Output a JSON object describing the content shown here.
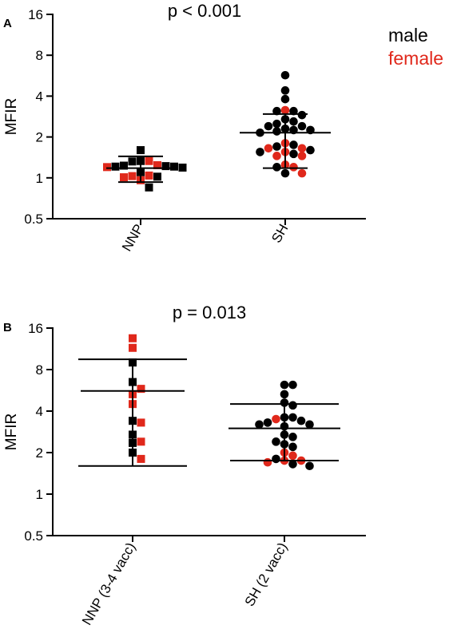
{
  "legend": {
    "male_label": "male",
    "female_label": "female",
    "male_color": "#000000",
    "female_color": "#e0281b"
  },
  "chart_data": [
    {
      "panel_label": "A",
      "type": "scatter",
      "title": "p < 0.001",
      "ylabel": "MFIR",
      "yscale": "log2",
      "ylim": [
        0.5,
        16
      ],
      "yticks": [
        {
          "value": 0.5,
          "label": "0.5"
        },
        {
          "value": 1,
          "label": "1"
        },
        {
          "value": 2,
          "label": "2"
        },
        {
          "value": 4,
          "label": "4"
        },
        {
          "value": 8,
          "label": "8"
        },
        {
          "value": 16,
          "label": "16"
        }
      ],
      "categories": [
        "NNP",
        "SH"
      ],
      "groups": [
        {
          "label": "NNP",
          "marker": "square",
          "mean": 1.18,
          "error": [
            0.93,
            1.44
          ],
          "points": [
            {
              "y": 1.6,
              "sex": "male"
            },
            {
              "y": 1.33,
              "sex": "male"
            },
            {
              "y": 1.33,
              "sex": "female"
            },
            {
              "y": 1.32,
              "sex": "male"
            },
            {
              "y": 1.24,
              "sex": "female"
            },
            {
              "y": 1.23,
              "sex": "male"
            },
            {
              "y": 1.22,
              "sex": "male"
            },
            {
              "y": 1.21,
              "sex": "male"
            },
            {
              "y": 1.21,
              "sex": "male"
            },
            {
              "y": 1.2,
              "sex": "female"
            },
            {
              "y": 1.19,
              "sex": "male"
            },
            {
              "y": 1.1,
              "sex": "male"
            },
            {
              "y": 1.04,
              "sex": "female"
            },
            {
              "y": 1.03,
              "sex": "female"
            },
            {
              "y": 1.02,
              "sex": "male"
            },
            {
              "y": 1.01,
              "sex": "female"
            },
            {
              "y": 0.96,
              "sex": "female"
            },
            {
              "y": 0.85,
              "sex": "male"
            }
          ]
        },
        {
          "label": "SH",
          "marker": "circle",
          "mean": 2.15,
          "error": [
            1.18,
            2.95
          ],
          "points": [
            {
              "y": 5.7,
              "sex": "male"
            },
            {
              "y": 4.4,
              "sex": "male"
            },
            {
              "y": 3.8,
              "sex": "male"
            },
            {
              "y": 3.15,
              "sex": "female"
            },
            {
              "y": 3.1,
              "sex": "male"
            },
            {
              "y": 3.1,
              "sex": "male"
            },
            {
              "y": 2.9,
              "sex": "male"
            },
            {
              "y": 2.7,
              "sex": "male"
            },
            {
              "y": 2.6,
              "sex": "male"
            },
            {
              "y": 2.5,
              "sex": "male"
            },
            {
              "y": 2.4,
              "sex": "male"
            },
            {
              "y": 2.4,
              "sex": "male"
            },
            {
              "y": 2.3,
              "sex": "male"
            },
            {
              "y": 2.25,
              "sex": "male"
            },
            {
              "y": 2.25,
              "sex": "male"
            },
            {
              "y": 2.2,
              "sex": "male"
            },
            {
              "y": 2.15,
              "sex": "male"
            },
            {
              "y": 1.8,
              "sex": "female"
            },
            {
              "y": 1.75,
              "sex": "male"
            },
            {
              "y": 1.7,
              "sex": "male"
            },
            {
              "y": 1.65,
              "sex": "female"
            },
            {
              "y": 1.65,
              "sex": "female"
            },
            {
              "y": 1.6,
              "sex": "male"
            },
            {
              "y": 1.55,
              "sex": "female"
            },
            {
              "y": 1.55,
              "sex": "male"
            },
            {
              "y": 1.5,
              "sex": "male"
            },
            {
              "y": 1.45,
              "sex": "female"
            },
            {
              "y": 1.45,
              "sex": "female"
            },
            {
              "y": 1.25,
              "sex": "female"
            },
            {
              "y": 1.2,
              "sex": "female"
            },
            {
              "y": 1.2,
              "sex": "male"
            },
            {
              "y": 1.08,
              "sex": "male"
            },
            {
              "y": 1.08,
              "sex": "female"
            }
          ]
        }
      ]
    },
    {
      "panel_label": "B",
      "type": "scatter",
      "title": "p = 0.013",
      "ylabel": "MFIR",
      "yscale": "log2",
      "ylim": [
        0.5,
        16
      ],
      "yticks": [
        {
          "value": 0.5,
          "label": "0.5"
        },
        {
          "value": 1,
          "label": "1"
        },
        {
          "value": 2,
          "label": "2"
        },
        {
          "value": 4,
          "label": "4"
        },
        {
          "value": 8,
          "label": "8"
        },
        {
          "value": 16,
          "label": "16"
        }
      ],
      "categories": [
        "NNP (3-4 vacc)",
        "SH (2 vacc)"
      ],
      "groups": [
        {
          "label": "NNP (3-4 vacc)",
          "marker": "square",
          "mean": 5.6,
          "error": [
            1.6,
            9.5
          ],
          "points": [
            {
              "y": 13.5,
              "sex": "female"
            },
            {
              "y": 11.5,
              "sex": "female"
            },
            {
              "y": 9.0,
              "sex": "male"
            },
            {
              "y": 6.5,
              "sex": "male"
            },
            {
              "y": 5.8,
              "sex": "female"
            },
            {
              "y": 5.3,
              "sex": "female"
            },
            {
              "y": 4.5,
              "sex": "female"
            },
            {
              "y": 3.4,
              "sex": "male"
            },
            {
              "y": 3.3,
              "sex": "female"
            },
            {
              "y": 2.7,
              "sex": "male"
            },
            {
              "y": 2.4,
              "sex": "female"
            },
            {
              "y": 2.35,
              "sex": "male"
            },
            {
              "y": 2.0,
              "sex": "male"
            },
            {
              "y": 1.8,
              "sex": "female"
            }
          ]
        },
        {
          "label": "SH (2 vacc)",
          "marker": "circle",
          "mean": 3.0,
          "error": [
            1.75,
            4.5
          ],
          "points": [
            {
              "y": 6.2,
              "sex": "male"
            },
            {
              "y": 6.2,
              "sex": "male"
            },
            {
              "y": 5.3,
              "sex": "male"
            },
            {
              "y": 4.6,
              "sex": "male"
            },
            {
              "y": 4.4,
              "sex": "male"
            },
            {
              "y": 3.6,
              "sex": "male"
            },
            {
              "y": 3.6,
              "sex": "male"
            },
            {
              "y": 3.5,
              "sex": "female"
            },
            {
              "y": 3.4,
              "sex": "male"
            },
            {
              "y": 3.3,
              "sex": "male"
            },
            {
              "y": 3.2,
              "sex": "male"
            },
            {
              "y": 3.2,
              "sex": "male"
            },
            {
              "y": 3.1,
              "sex": "male"
            },
            {
              "y": 2.7,
              "sex": "male"
            },
            {
              "y": 2.6,
              "sex": "male"
            },
            {
              "y": 2.4,
              "sex": "male"
            },
            {
              "y": 2.3,
              "sex": "male"
            },
            {
              "y": 2.2,
              "sex": "male"
            },
            {
              "y": 2.0,
              "sex": "female"
            },
            {
              "y": 1.9,
              "sex": "female"
            },
            {
              "y": 1.8,
              "sex": "male"
            },
            {
              "y": 1.75,
              "sex": "female"
            },
            {
              "y": 1.75,
              "sex": "female"
            },
            {
              "y": 1.7,
              "sex": "female"
            },
            {
              "y": 1.65,
              "sex": "male"
            },
            {
              "y": 1.6,
              "sex": "male"
            }
          ]
        }
      ]
    }
  ]
}
